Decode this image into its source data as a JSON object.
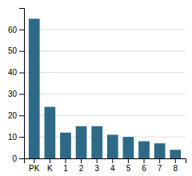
{
  "chart_data": {
    "type": "bar",
    "categories": [
      "PK",
      "K",
      "1",
      "2",
      "3",
      "4",
      "5",
      "6",
      "7",
      "8"
    ],
    "values": [
      65,
      24,
      12,
      15,
      15,
      11,
      10,
      8,
      7,
      4
    ],
    "color": "#2e6a87",
    "ylim": [
      0,
      70
    ],
    "yticks": [
      0,
      10,
      20,
      30,
      40,
      50,
      60
    ],
    "grid": true
  }
}
